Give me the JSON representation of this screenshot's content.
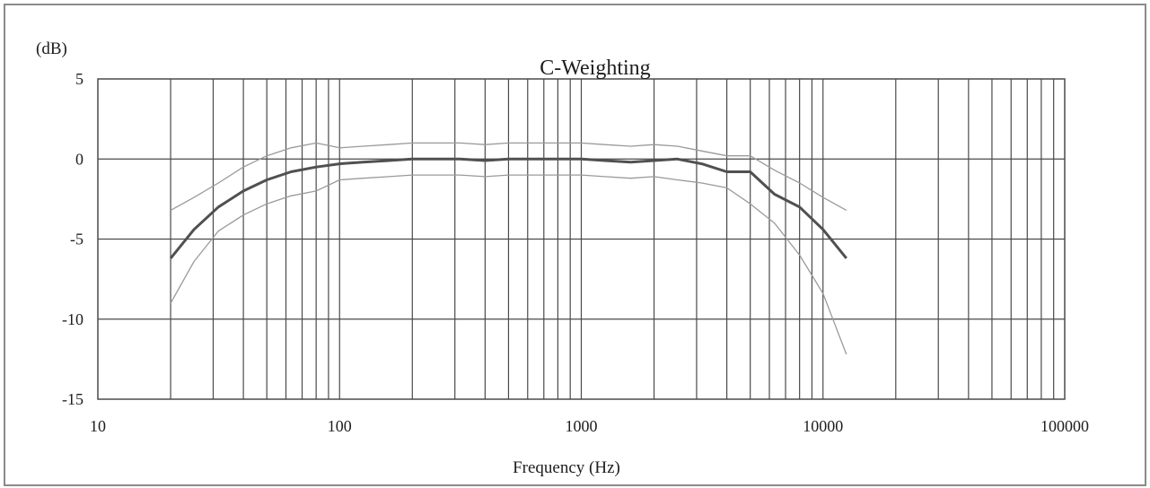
{
  "chart_data": {
    "type": "line",
    "title": "C-Weighting",
    "xlabel": "Frequency (Hz)",
    "ylabel": "(dB)",
    "x_scale": "log",
    "xlim": [
      10,
      100000
    ],
    "ylim": [
      -15,
      5
    ],
    "x_ticks": [
      10,
      100,
      1000,
      10000,
      100000
    ],
    "x_tick_labels": [
      "10",
      "100",
      "1000",
      "10000",
      "100000"
    ],
    "y_ticks": [
      5,
      0,
      -5,
      -10,
      -15
    ],
    "y_tick_labels": [
      "5",
      "0",
      "-5",
      "-10",
      "-15"
    ],
    "grid": true,
    "legend": "none",
    "x": [
      20,
      25,
      31.5,
      40,
      50,
      63,
      80,
      100,
      125,
      160,
      200,
      250,
      315,
      400,
      500,
      630,
      800,
      1000,
      1250,
      1600,
      2000,
      2500,
      3150,
      4000,
      5000,
      6300,
      8000,
      10000,
      12500
    ],
    "series": [
      {
        "role": "nominal",
        "color": "#505050",
        "values": [
          -6.2,
          -4.4,
          -3.0,
          -2.0,
          -1.3,
          -0.8,
          -0.5,
          -0.3,
          -0.2,
          -0.1,
          0,
          0,
          0,
          -0.1,
          0,
          0,
          0,
          0,
          -0.1,
          -0.2,
          -0.1,
          0,
          -0.3,
          -0.8,
          -0.8,
          -2.2,
          -3.0,
          -4.4,
          -6.2
        ]
      },
      {
        "role": "upper tolerance",
        "color": "#9a9a9a",
        "values": [
          -3.2,
          -2.4,
          -1.5,
          -0.5,
          0.2,
          0.7,
          1.0,
          0.7,
          0.8,
          0.9,
          1.0,
          1.0,
          1.0,
          0.9,
          1.0,
          1.0,
          1.0,
          1.0,
          0.9,
          0.8,
          0.9,
          0.8,
          0.5,
          0.2,
          0.2,
          -0.7,
          -1.5,
          -2.4,
          -3.2
        ]
      },
      {
        "role": "lower tolerance",
        "color": "#9a9a9a",
        "values": [
          -9.0,
          -6.4,
          -4.5,
          -3.5,
          -2.8,
          -2.3,
          -2.0,
          -1.3,
          -1.2,
          -1.1,
          -1.0,
          -1.0,
          -1.0,
          -1.1,
          -1.0,
          -1.0,
          -1.0,
          -1.0,
          -1.1,
          -1.2,
          -1.1,
          -1.3,
          -1.5,
          -1.8,
          -2.8,
          -4.0,
          -6.0,
          -8.4,
          -12.2
        ]
      }
    ]
  }
}
